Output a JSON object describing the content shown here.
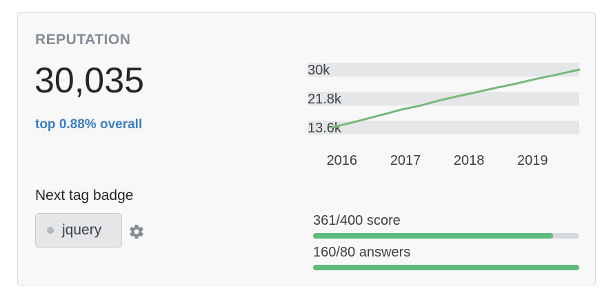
{
  "reputation": {
    "heading": "REPUTATION",
    "value": "30,035",
    "rank": "top 0.88% overall"
  },
  "chart_data": {
    "type": "line",
    "y_ticks": [
      "30k",
      "21.8k",
      "13.6k"
    ],
    "y_tick_values": [
      30000,
      21800,
      13600
    ],
    "x_ticks": [
      "2016",
      "2017",
      "2018",
      "2019"
    ],
    "x_tick_values": [
      2016,
      2017,
      2018,
      2019
    ],
    "xlim": [
      2015.85,
      2019.8
    ],
    "ylim": [
      13600,
      30000
    ],
    "grid": true,
    "line_color": "#76b979",
    "series": [
      {
        "x": [
          2015.9,
          2016.2,
          2016.5,
          2016.8,
          2017.0,
          2017.3,
          2017.6,
          2017.9,
          2018.2,
          2018.5,
          2018.8,
          2019.1,
          2019.4,
          2019.8
        ],
        "values": [
          13600,
          14900,
          16300,
          17700,
          18700,
          19800,
          21300,
          22500,
          23700,
          24900,
          26000,
          27300,
          28400,
          30000
        ]
      }
    ]
  },
  "next_badge": {
    "label": "Next tag badge",
    "tag": "jquery",
    "settings_icon": "gear-icon"
  },
  "progress": [
    {
      "label": "361/400 score",
      "value": 361,
      "max": 400,
      "fraction": 0.9025
    },
    {
      "label": "160/80 answers",
      "value": 160,
      "max": 80,
      "fraction": 1.0
    }
  ],
  "colors": {
    "accent_link": "#3b7fc4",
    "progress_fill": "#5eba7d",
    "progress_track": "#d6d9dc",
    "grid_band": "#e4e6e8"
  }
}
